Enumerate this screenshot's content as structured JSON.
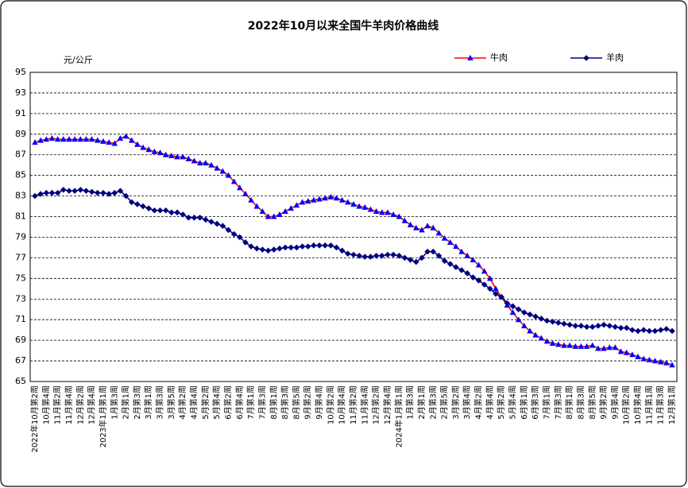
{
  "chart_data": {
    "type": "line",
    "title": "2022年10月以来全国牛羊肉价格曲线",
    "y_unit": "元/公斤",
    "categories": [
      "2022年10月第2周",
      null,
      "10月第4周",
      null,
      "11月第2周",
      null,
      "11月第4周",
      null,
      "12月第2周",
      null,
      "12月第4周",
      null,
      "2023年1月第1周",
      null,
      "1月第3周",
      null,
      "2月第1周",
      null,
      "2月第3周",
      null,
      "3月第1周",
      null,
      "3月第3周",
      null,
      "3月第5周",
      null,
      "4月第2周",
      null,
      "4月第4周",
      null,
      "5月第2周",
      null,
      "5月第4周",
      null,
      "6月第2周",
      null,
      "6月第4周",
      null,
      "7月第1周",
      null,
      "7月第3周",
      null,
      "8月第1周",
      null,
      "8月第3周",
      null,
      "8月第5周",
      null,
      "9月第2周",
      null,
      "9月第4周",
      null,
      "10月第2周",
      null,
      "10月第4周",
      null,
      "11月第2周",
      null,
      "11月第4周",
      null,
      "12月第2周",
      null,
      "12月第4周",
      null,
      "2024年1月第1周",
      null,
      "1月第3周",
      null,
      "2月第1周",
      null,
      "2月第3周",
      null,
      "2月第5周",
      null,
      "3月第2周",
      null,
      "3月第4周",
      null,
      "4月第2周",
      null,
      "4月第4周",
      null,
      "5月第2周",
      null,
      "5月第4周",
      null,
      "6月第1周",
      null,
      "6月第3周",
      null,
      "7月第1周",
      null,
      "7月第3周",
      null,
      "8月第1周",
      null,
      "8月第3周",
      null,
      "8月第5周",
      null,
      "9月第2周",
      null,
      "9月第4周",
      null,
      "10月第2周",
      null,
      "10月第4周",
      null,
      "11月第1周",
      null,
      "11月第3周",
      null,
      "12月第1周"
    ],
    "series": [
      {
        "name": "牛肉",
        "color": "#ff0000",
        "marker": "triangle",
        "marker_color": "#0000ff",
        "values": [
          88.2,
          88.4,
          88.5,
          88.6,
          88.5,
          88.5,
          88.5,
          88.5,
          88.5,
          88.5,
          88.5,
          88.4,
          88.3,
          88.2,
          88.1,
          88.6,
          88.8,
          88.4,
          88.0,
          87.7,
          87.5,
          87.3,
          87.2,
          87.0,
          86.9,
          86.8,
          86.8,
          86.6,
          86.4,
          86.2,
          86.2,
          86.0,
          85.7,
          85.4,
          85.0,
          84.4,
          83.8,
          83.2,
          82.6,
          82.0,
          81.5,
          81.0,
          81.0,
          81.2,
          81.5,
          81.8,
          82.1,
          82.4,
          82.5,
          82.6,
          82.7,
          82.8,
          82.9,
          82.8,
          82.6,
          82.4,
          82.2,
          82.0,
          81.9,
          81.7,
          81.5,
          81.4,
          81.4,
          81.2,
          81.0,
          80.6,
          80.2,
          79.9,
          79.7,
          80.1,
          79.9,
          79.4,
          78.9,
          78.5,
          78.1,
          77.6,
          77.2,
          76.8,
          76.3,
          75.7,
          75.0,
          74.0,
          73.2,
          72.4,
          71.7,
          71.0,
          70.4,
          69.9,
          69.5,
          69.2,
          68.9,
          68.7,
          68.6,
          68.5,
          68.5,
          68.4,
          68.4,
          68.4,
          68.5,
          68.2,
          68.2,
          68.3,
          68.3,
          67.9,
          67.8,
          67.6,
          67.4,
          67.2,
          67.1,
          67.0,
          66.9,
          66.8,
          66.6
        ]
      },
      {
        "name": "羊肉",
        "color": "#000080",
        "marker": "diamond",
        "marker_color": "#000080",
        "values": [
          83.0,
          83.2,
          83.3,
          83.3,
          83.3,
          83.6,
          83.5,
          83.5,
          83.6,
          83.5,
          83.4,
          83.3,
          83.3,
          83.2,
          83.3,
          83.5,
          83.0,
          82.4,
          82.2,
          82.0,
          81.8,
          81.6,
          81.6,
          81.6,
          81.4,
          81.4,
          81.2,
          80.9,
          80.9,
          80.9,
          80.7,
          80.5,
          80.3,
          80.1,
          79.7,
          79.3,
          79.0,
          78.5,
          78.1,
          77.9,
          77.8,
          77.7,
          77.8,
          77.9,
          78.0,
          78.0,
          78.0,
          78.1,
          78.1,
          78.2,
          78.2,
          78.2,
          78.2,
          78.0,
          77.7,
          77.4,
          77.3,
          77.2,
          77.1,
          77.1,
          77.2,
          77.2,
          77.3,
          77.3,
          77.2,
          77.0,
          76.8,
          76.6,
          77.0,
          77.6,
          77.6,
          77.2,
          76.7,
          76.4,
          76.1,
          75.8,
          75.5,
          75.1,
          74.8,
          74.4,
          74.0,
          73.5,
          73.2,
          72.6,
          72.3,
          72.0,
          71.7,
          71.5,
          71.3,
          71.1,
          70.9,
          70.8,
          70.7,
          70.6,
          70.5,
          70.4,
          70.4,
          70.3,
          70.3,
          70.4,
          70.5,
          70.4,
          70.3,
          70.2,
          70.2,
          70.0,
          69.9,
          70.0,
          69.9,
          69.9,
          70.0,
          70.1,
          69.9
        ]
      }
    ],
    "ylim": [
      65,
      95
    ],
    "yticks": [
      65,
      67,
      69,
      71,
      73,
      75,
      77,
      79,
      81,
      83,
      85,
      87,
      89,
      91,
      93,
      95
    ],
    "grid": true,
    "legend": "top-right"
  }
}
